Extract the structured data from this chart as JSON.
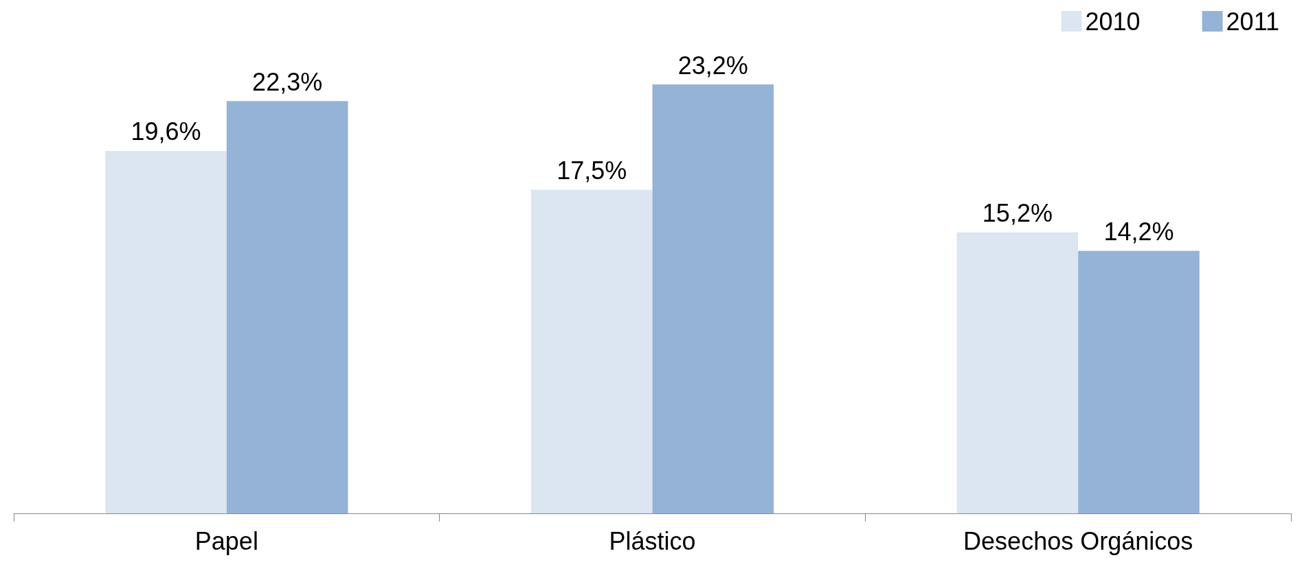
{
  "chart_data": {
    "type": "bar",
    "categories": [
      "Papel",
      "Plástico",
      "Desechos Orgánicos"
    ],
    "series": [
      {
        "name": "2010",
        "color": "#dce6f2",
        "values": [
          19.6,
          17.5,
          15.2
        ],
        "value_labels": [
          "19,6%",
          "17,5%",
          "15,2%"
        ]
      },
      {
        "name": "2011",
        "color": "#95b3d7",
        "values": [
          22.3,
          23.2,
          14.2
        ],
        "value_labels": [
          "22,3%",
          "23,2%",
          "14,2%"
        ]
      }
    ],
    "legend": "top right",
    "grid": false
  }
}
